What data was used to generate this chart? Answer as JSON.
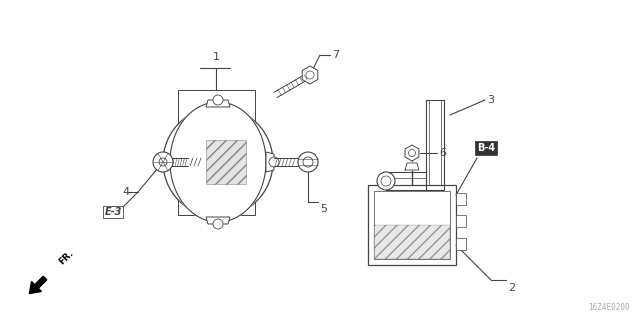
{
  "background_color": "#ffffff",
  "diagram_color": "#444444",
  "part_num_label": "16Z4E0200",
  "fig_width": 6.4,
  "fig_height": 3.2,
  "dpi": 100
}
